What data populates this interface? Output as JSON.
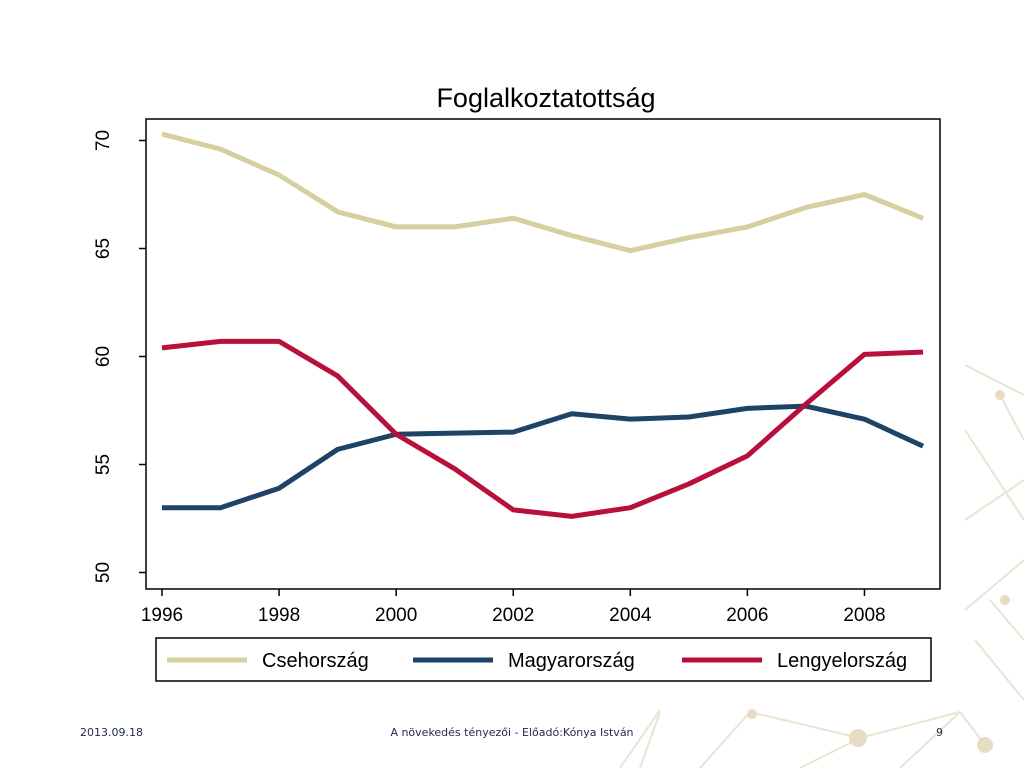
{
  "footer": {
    "date": "2013.09.18",
    "title": "A növekedés tényezői -  Előadó:Kónya István",
    "page": "9"
  },
  "chart_data": {
    "type": "line",
    "title": "Foglalkoztatottság",
    "xlabel": "",
    "ylabel": "",
    "x": [
      1996,
      1997,
      1998,
      1999,
      2000,
      2001,
      2002,
      2003,
      2004,
      2005,
      2006,
      2007,
      2008,
      2009
    ],
    "xlim": [
      1996,
      2009
    ],
    "ylim": [
      49.5,
      71
    ],
    "xticks": [
      1996,
      1998,
      2000,
      2002,
      2004,
      2006,
      2008
    ],
    "yticks": [
      50,
      55,
      60,
      65,
      70
    ],
    "grid": false,
    "legend_position": "bottom",
    "series": [
      {
        "name": "Csehország",
        "color": "#d6d0a0",
        "values": [
          70.3,
          69.6,
          68.4,
          66.7,
          66.0,
          66.0,
          66.4,
          65.6,
          64.9,
          65.5,
          66.0,
          66.9,
          67.5,
          66.4
        ]
      },
      {
        "name": "Magyarország",
        "color": "#1d4466",
        "values": [
          53.0,
          53.0,
          53.9,
          55.7,
          56.4,
          56.45,
          56.5,
          57.35,
          57.1,
          57.2,
          57.6,
          57.7,
          57.1,
          55.85
        ]
      },
      {
        "name": "Lengyelország",
        "color": "#b8103a",
        "values": [
          60.4,
          60.7,
          60.7,
          59.1,
          56.4,
          54.8,
          52.9,
          52.6,
          53.0,
          54.1,
          55.4,
          57.8,
          60.1,
          60.2
        ]
      }
    ]
  }
}
